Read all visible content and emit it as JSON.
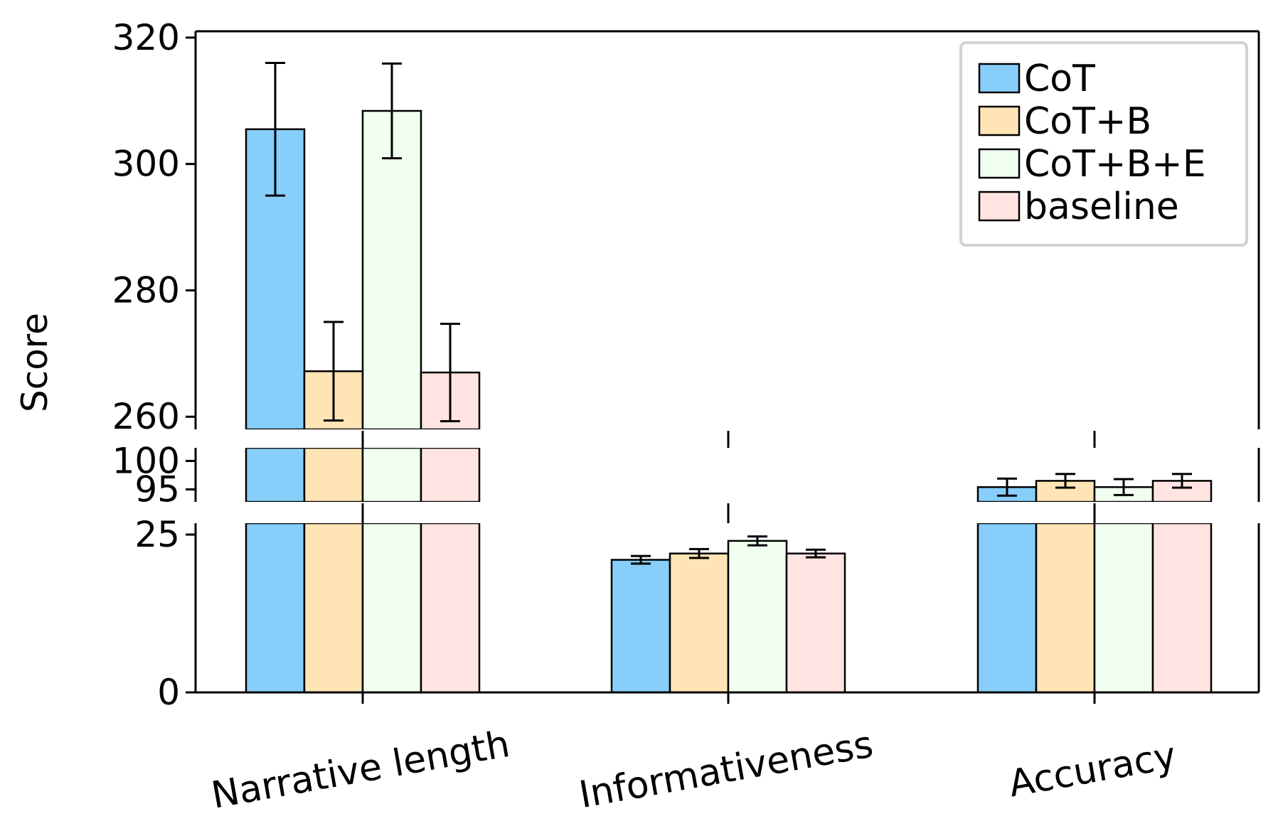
{
  "chart_data": {
    "type": "bar",
    "title": "",
    "xlabel": "",
    "ylabel": "Score",
    "categories": [
      "Narrative length",
      "Informativeness",
      "Accuracy"
    ],
    "series": [
      {
        "name": "CoT",
        "color": "#87CEFA",
        "values": [
          305.5,
          21.0,
          95.4
        ],
        "errors": [
          10.5,
          0.6,
          1.5
        ]
      },
      {
        "name": "CoT+B",
        "color": "#FFE4B5",
        "values": [
          267.2,
          22.0,
          96.5
        ],
        "errors": [
          7.8,
          0.7,
          1.2
        ]
      },
      {
        "name": "CoT+B+E",
        "color": "#F0FFF0",
        "values": [
          308.4,
          24.0,
          95.4
        ],
        "errors": [
          7.5,
          0.7,
          1.4
        ]
      },
      {
        "name": "baseline",
        "color": "#FFE4E1",
        "values": [
          267.0,
          22.0,
          96.5
        ],
        "errors": [
          7.7,
          0.6,
          1.2
        ]
      }
    ],
    "axis_segments": [
      {
        "range": [
          258,
          321
        ],
        "ticks": [
          260,
          280,
          300,
          320
        ]
      },
      {
        "range": [
          92.8,
          102.3
        ],
        "ticks": [
          95,
          100
        ]
      },
      {
        "range": [
          0,
          26.8
        ],
        "ticks": [
          0,
          25
        ]
      }
    ],
    "broken_axis": true,
    "legend_position": "top-right",
    "grid": false
  }
}
